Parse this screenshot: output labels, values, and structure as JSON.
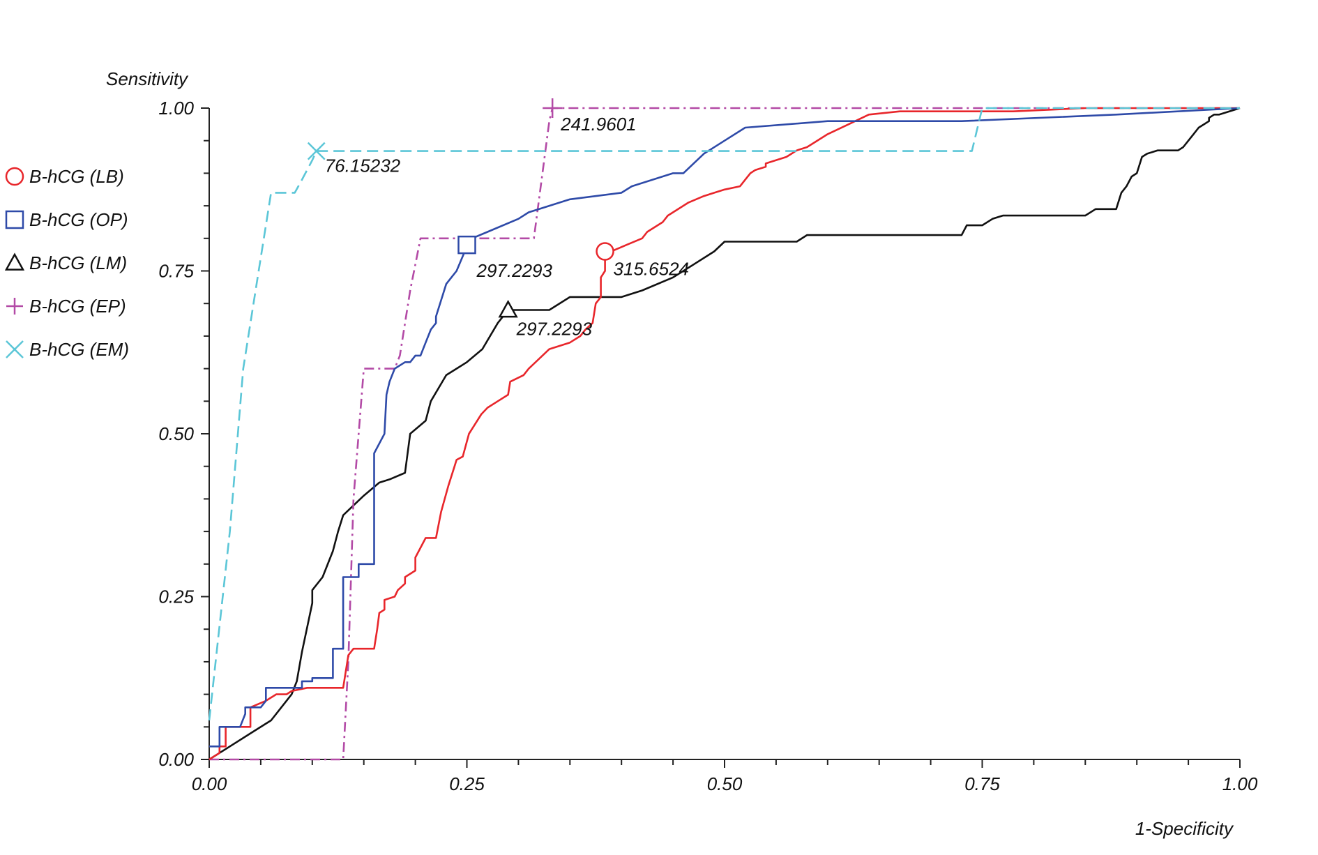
{
  "chart_data": {
    "type": "line",
    "title": "",
    "xlabel": "1-Specificity",
    "ylabel": "Sensitivity",
    "xlim": [
      0,
      1
    ],
    "ylim": [
      0,
      1
    ],
    "xticks": [
      0,
      0.25,
      0.5,
      0.75,
      1
    ],
    "yticks": [
      0,
      0.25,
      0.5,
      0.75,
      1
    ],
    "xtick_labels": [
      "0.00",
      "0.25",
      "0.50",
      "0.75",
      "1.00"
    ],
    "ytick_labels": [
      "0.00",
      "0.25",
      "0.50",
      "0.75",
      "1.00"
    ],
    "grid": false,
    "legend_position": "left",
    "series": [
      {
        "id": "lb",
        "name": "B-hCG (LB)",
        "color": "#e8262b",
        "marker": "circle",
        "dash": "solid",
        "cutoff": {
          "x": 0.384,
          "y": 0.78,
          "label": "315.6524"
        },
        "x": [
          0,
          0.01,
          0.01,
          0.016,
          0.016,
          0.04,
          0.04,
          0.055,
          0.065,
          0.075,
          0.08,
          0.095,
          0.105,
          0.13,
          0.135,
          0.14,
          0.16,
          0.163,
          0.165,
          0.17,
          0.17,
          0.18,
          0.183,
          0.19,
          0.19,
          0.2,
          0.2,
          0.21,
          0.22,
          0.225,
          0.232,
          0.238,
          0.24,
          0.246,
          0.252,
          0.256,
          0.264,
          0.27,
          0.28,
          0.29,
          0.292,
          0.305,
          0.31,
          0.33,
          0.35,
          0.36,
          0.365,
          0.372,
          0.375,
          0.38,
          0.38,
          0.384,
          0.384,
          0.39,
          0.405,
          0.42,
          0.425,
          0.44,
          0.445,
          0.465,
          0.48,
          0.5,
          0.515,
          0.52,
          0.525,
          0.53,
          0.54,
          0.54,
          0.56,
          0.565,
          0.57,
          0.58,
          0.585,
          0.6,
          0.62,
          0.64,
          0.67,
          0.78,
          0.85,
          0.92,
          1
        ],
        "y": [
          0,
          0.01,
          0.02,
          0.02,
          0.05,
          0.05,
          0.08,
          0.09,
          0.1,
          0.1,
          0.105,
          0.11,
          0.11,
          0.11,
          0.16,
          0.17,
          0.17,
          0.2,
          0.225,
          0.23,
          0.245,
          0.25,
          0.26,
          0.27,
          0.28,
          0.29,
          0.31,
          0.34,
          0.34,
          0.38,
          0.42,
          0.45,
          0.46,
          0.465,
          0.5,
          0.51,
          0.53,
          0.54,
          0.55,
          0.56,
          0.58,
          0.59,
          0.6,
          0.63,
          0.64,
          0.65,
          0.66,
          0.67,
          0.7,
          0.71,
          0.74,
          0.75,
          0.78,
          0.78,
          0.79,
          0.8,
          0.81,
          0.825,
          0.835,
          0.855,
          0.865,
          0.875,
          0.88,
          0.89,
          0.9,
          0.905,
          0.91,
          0.915,
          0.925,
          0.93,
          0.935,
          0.94,
          0.945,
          0.96,
          0.975,
          0.99,
          0.995,
          0.995,
          1,
          1,
          1
        ]
      },
      {
        "id": "op",
        "name": "B-hCG (OP)",
        "color": "#2e4aa8",
        "marker": "square",
        "dash": "solid",
        "cutoff": {
          "x": 0.25,
          "y": 0.79,
          "label": "297.2293"
        },
        "x": [
          0,
          0.01,
          0.01,
          0.03,
          0.035,
          0.035,
          0.05,
          0.055,
          0.055,
          0.09,
          0.09,
          0.1,
          0.1,
          0.12,
          0.12,
          0.13,
          0.13,
          0.145,
          0.145,
          0.16,
          0.16,
          0.17,
          0.172,
          0.175,
          0.18,
          0.19,
          0.195,
          0.2,
          0.205,
          0.21,
          0.215,
          0.22,
          0.22,
          0.23,
          0.235,
          0.24,
          0.248,
          0.25,
          0.255,
          0.27,
          0.3,
          0.31,
          0.35,
          0.4,
          0.41,
          0.45,
          0.46,
          0.48,
          0.5,
          0.52,
          0.6,
          0.65,
          0.73,
          0.88,
          1
        ],
        "y": [
          0.02,
          0.02,
          0.05,
          0.05,
          0.07,
          0.08,
          0.08,
          0.09,
          0.11,
          0.11,
          0.12,
          0.12,
          0.125,
          0.125,
          0.17,
          0.17,
          0.28,
          0.28,
          0.3,
          0.3,
          0.47,
          0.5,
          0.56,
          0.58,
          0.6,
          0.61,
          0.61,
          0.62,
          0.62,
          0.64,
          0.66,
          0.67,
          0.68,
          0.73,
          0.74,
          0.75,
          0.78,
          0.79,
          0.8,
          0.81,
          0.83,
          0.84,
          0.86,
          0.87,
          0.88,
          0.9,
          0.9,
          0.93,
          0.95,
          0.97,
          0.98,
          0.98,
          0.98,
          0.99,
          1
        ]
      },
      {
        "id": "lm",
        "name": "B-hCG (LM)",
        "color": "#111111",
        "marker": "triangle",
        "dash": "solid",
        "cutoff": {
          "x": 0.29,
          "y": 0.69,
          "label": "297.2293"
        },
        "x": [
          0,
          0.02,
          0.04,
          0.06,
          0.08,
          0.085,
          0.09,
          0.1,
          0.1,
          0.11,
          0.12,
          0.125,
          0.13,
          0.14,
          0.15,
          0.165,
          0.175,
          0.19,
          0.195,
          0.21,
          0.215,
          0.23,
          0.24,
          0.25,
          0.265,
          0.28,
          0.29,
          0.33,
          0.35,
          0.4,
          0.42,
          0.45,
          0.47,
          0.49,
          0.5,
          0.57,
          0.58,
          0.7,
          0.73,
          0.735,
          0.75,
          0.76,
          0.77,
          0.85,
          0.86,
          0.88,
          0.885,
          0.89,
          0.895,
          0.9,
          0.905,
          0.91,
          0.92,
          0.94,
          0.945,
          0.95,
          0.955,
          0.96,
          0.965,
          0.97,
          0.97,
          0.975,
          0.98,
          1
        ],
        "y": [
          0,
          0.02,
          0.04,
          0.06,
          0.1,
          0.12,
          0.165,
          0.24,
          0.26,
          0.28,
          0.32,
          0.35,
          0.375,
          0.39,
          0.405,
          0.425,
          0.43,
          0.44,
          0.5,
          0.52,
          0.55,
          0.59,
          0.6,
          0.61,
          0.63,
          0.67,
          0.69,
          0.69,
          0.71,
          0.71,
          0.72,
          0.74,
          0.76,
          0.78,
          0.795,
          0.795,
          0.805,
          0.805,
          0.805,
          0.82,
          0.82,
          0.83,
          0.835,
          0.835,
          0.845,
          0.845,
          0.87,
          0.88,
          0.895,
          0.9,
          0.925,
          0.93,
          0.935,
          0.935,
          0.94,
          0.95,
          0.96,
          0.97,
          0.975,
          0.98,
          0.985,
          0.99,
          0.99,
          1
        ]
      },
      {
        "id": "ep",
        "name": "B-hCG (EP)",
        "color": "#b34aa6",
        "marker": "plus",
        "dash": "dashdot",
        "cutoff": {
          "x": 0.333,
          "y": 1.0,
          "label": "241.9601"
        },
        "x": [
          0,
          0.13,
          0.135,
          0.14,
          0.15,
          0.155,
          0.16,
          0.18,
          0.185,
          0.195,
          0.2,
          0.205,
          0.23,
          0.3,
          0.3,
          0.31,
          0.315,
          0.33,
          0.333,
          1
        ],
        "y": [
          0,
          0,
          0.15,
          0.4,
          0.6,
          0.6,
          0.6,
          0.6,
          0.62,
          0.72,
          0.76,
          0.8,
          0.8,
          0.8,
          0.8,
          0.8,
          0.8,
          0.98,
          1.0,
          1.0
        ]
      },
      {
        "id": "em",
        "name": "B-hCG (EM)",
        "color": "#5bc6d7",
        "marker": "cross",
        "dash": "dash",
        "cutoff": {
          "x": 0.104,
          "y": 0.934,
          "label": "76.15232"
        },
        "x": [
          0,
          0.02,
          0.033,
          0.045,
          0.06,
          0.08,
          0.083,
          0.09,
          0.1,
          0.104,
          0.3,
          0.5,
          0.6,
          0.74,
          0.75,
          1
        ],
        "y": [
          0.06,
          0.35,
          0.6,
          0.72,
          0.87,
          0.87,
          0.87,
          0.89,
          0.92,
          0.934,
          0.934,
          0.934,
          0.934,
          0.934,
          1.0,
          1.0
        ]
      }
    ]
  }
}
